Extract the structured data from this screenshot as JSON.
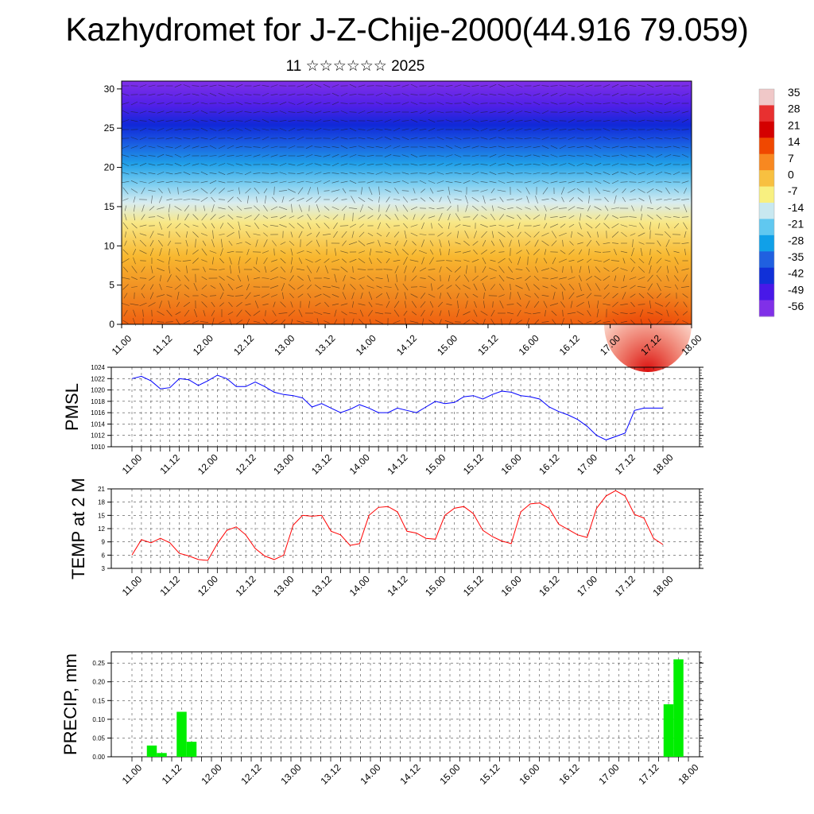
{
  "title": "Kazhydromet for J-Z-Chije-2000(44.916 79.059)",
  "subtitle": "11 ☆☆☆☆☆☆ 2025",
  "time_labels": [
    "11.00",
    "11.12",
    "12.00",
    "12.12",
    "13.00",
    "13.12",
    "14.00",
    "14.12",
    "15.00",
    "15.12",
    "16.00",
    "16.12",
    "17.00",
    "17.12",
    "18.00"
  ],
  "chart_data": [
    {
      "type": "heatmap",
      "name": "vertical-temperature-cross-section",
      "x_categories": [
        "11.00",
        "11.12",
        "12.00",
        "12.12",
        "13.00",
        "13.12",
        "14.00",
        "14.12",
        "15.00",
        "15.12",
        "16.00",
        "16.12",
        "17.00",
        "17.12",
        "18.00"
      ],
      "y_ticks": [
        "0",
        "5",
        "10",
        "15",
        "20",
        "25",
        "30"
      ],
      "ylim": [
        0,
        31
      ],
      "colorbar": {
        "labels": [
          "35",
          "28",
          "21",
          "14",
          "7",
          "0",
          "-7",
          "-14",
          "-21",
          "-28",
          "-35",
          "-42",
          "-49",
          "-56"
        ],
        "colors": [
          "#f0c8c8",
          "#e83030",
          "#d40000",
          "#f04800",
          "#f88820",
          "#f8c040",
          "#f8f080",
          "#c8e8f0",
          "#60c8f0",
          "#10a0e8",
          "#2060e0",
          "#1030d8",
          "#4818e8",
          "#8030e8"
        ]
      }
    },
    {
      "type": "line",
      "name": "PMSL",
      "ylabel": "PMSL",
      "ylim": [
        1010,
        1024
      ],
      "y_ticks": [
        "1024",
        "1022",
        "1020",
        "1018",
        "1016",
        "1014",
        "1012",
        "1010"
      ],
      "color": "#0000ff",
      "x": [
        0,
        3,
        6,
        9,
        12,
        15,
        18,
        21,
        24,
        27,
        30,
        33,
        36,
        39,
        42,
        45,
        48,
        51,
        54,
        57,
        60,
        63,
        66,
        69,
        72,
        75,
        78,
        81,
        84,
        87,
        90,
        93,
        96,
        99,
        102,
        105,
        108,
        111,
        114,
        117,
        120,
        123,
        126,
        129,
        132,
        135,
        138,
        141,
        144,
        147,
        150,
        153,
        156,
        159,
        162,
        165,
        168
      ],
      "values": [
        1022.0,
        1022.4,
        1021.6,
        1020.2,
        1020.4,
        1022.0,
        1021.8,
        1020.8,
        1021.6,
        1022.6,
        1022.0,
        1020.6,
        1020.6,
        1021.4,
        1020.6,
        1019.6,
        1019.2,
        1019.0,
        1018.6,
        1017.0,
        1017.6,
        1016.8,
        1016.0,
        1016.6,
        1017.4,
        1016.8,
        1016.0,
        1016.0,
        1016.8,
        1016.4,
        1016.0,
        1017.0,
        1018.0,
        1017.6,
        1017.8,
        1018.8,
        1019.0,
        1018.4,
        1019.2,
        1019.8,
        1019.6,
        1019.0,
        1018.8,
        1018.4,
        1017.0,
        1016.2,
        1015.6,
        1014.8,
        1013.6,
        1012.0,
        1011.2,
        1011.8,
        1012.4,
        1016.4,
        1016.8,
        1016.8,
        1016.8
      ]
    },
    {
      "type": "line",
      "name": "TEMP at 2 M",
      "ylabel": "TEMP at 2 M",
      "ylim": [
        3,
        21
      ],
      "y_ticks": [
        "21",
        "18",
        "15",
        "12",
        "9",
        "6",
        "3"
      ],
      "color": "#ff0000",
      "x": [
        0,
        3,
        6,
        9,
        12,
        15,
        18,
        21,
        24,
        27,
        30,
        33,
        36,
        39,
        42,
        45,
        48,
        51,
        54,
        57,
        60,
        63,
        66,
        69,
        72,
        75,
        78,
        81,
        84,
        87,
        90,
        93,
        96,
        99,
        102,
        105,
        108,
        111,
        114,
        117,
        120,
        123,
        126,
        129,
        132,
        135,
        138,
        141,
        144,
        147,
        150,
        153,
        156,
        159,
        162,
        165,
        168
      ],
      "values": [
        6.0,
        9.5,
        8.8,
        9.8,
        8.8,
        6.4,
        5.8,
        5.0,
        4.8,
        8.6,
        11.6,
        12.4,
        10.6,
        7.5,
        5.8,
        5.0,
        6.0,
        12.8,
        15.0,
        14.8,
        15.0,
        11.4,
        10.6,
        8.2,
        8.6,
        15.0,
        16.8,
        17.0,
        15.8,
        11.4,
        11.0,
        9.8,
        9.6,
        15.0,
        16.6,
        17.0,
        15.4,
        11.6,
        10.2,
        9.2,
        8.6,
        15.8,
        17.6,
        17.8,
        16.6,
        13.0,
        11.8,
        10.6,
        10.0,
        16.6,
        19.4,
        20.6,
        19.4,
        15.2,
        14.4,
        9.8,
        8.4
      ]
    },
    {
      "type": "bar",
      "name": "PRECIP",
      "ylabel": "PRECIP, mm",
      "ylim": [
        0,
        0.28
      ],
      "y_ticks": [
        "0.00",
        "0.05",
        "0.10",
        "0.15",
        "0.20",
        "0.25"
      ],
      "color": "#00ee00",
      "x": [
        6,
        9,
        15,
        18,
        162,
        165
      ],
      "values": [
        0.03,
        0.01,
        0.12,
        0.04,
        0.14,
        0.26
      ]
    }
  ]
}
